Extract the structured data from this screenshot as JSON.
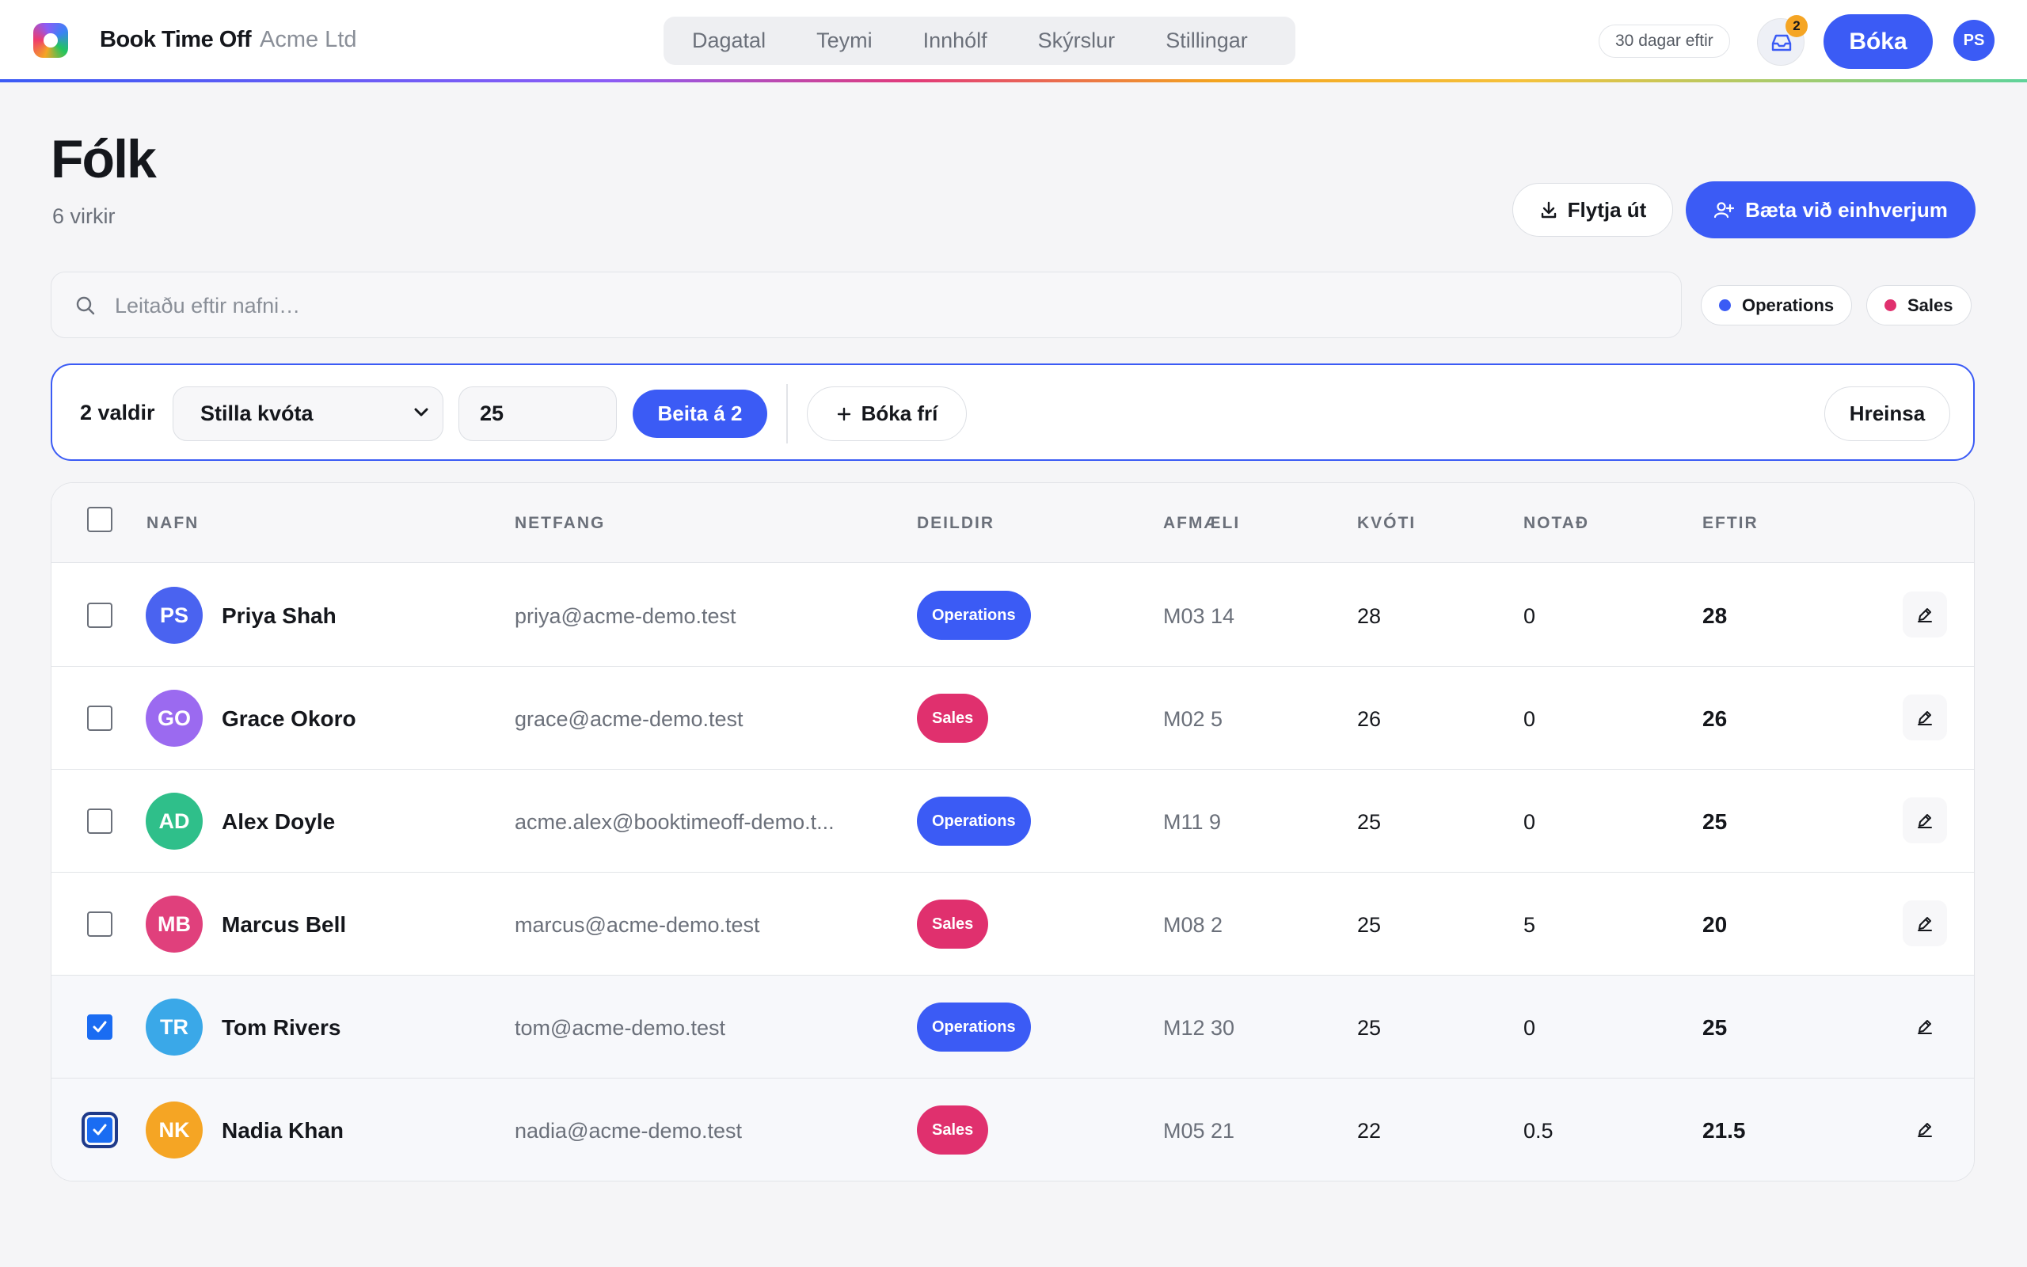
{
  "app": {
    "brand": "Book Time Off",
    "org": "Acme Ltd",
    "nav": [
      "Dagatal",
      "Teymi",
      "Innhólf",
      "Skýrslur",
      "Stillingar"
    ],
    "days_left": "30 dagar eftir",
    "inbox_count": "2",
    "book_label": "Bóka",
    "user_initials": "PS",
    "icons": [
      "logo",
      "inbox-icon"
    ]
  },
  "header": {
    "title": "Fólk",
    "subtitle": "6 virkir",
    "export_label": "Flytja út",
    "add_label": "Bæta við einhverjum",
    "icons": [
      "download-icon",
      "user-plus-icon"
    ]
  },
  "search": {
    "placeholder": "Leitaðu eftir nafni…",
    "value": "",
    "icon": "search-icon"
  },
  "filters": [
    {
      "label": "Operations",
      "color": "#3b5bf5"
    },
    {
      "label": "Sales",
      "color": "#e0306e"
    }
  ],
  "bulk": {
    "count_label": "2 valdir",
    "action_selected": "Stilla kvóta",
    "value": "25",
    "apply_label": "Beita á 2",
    "book_label": "Bóka frí",
    "clear_label": "Hreinsa"
  },
  "table": {
    "columns": [
      "NAFN",
      "NETFANG",
      "DEILDIR",
      "AFMÆLI",
      "KVÓTI",
      "NOTAÐ",
      "EFTIR"
    ],
    "rows": [
      {
        "initials": "PS",
        "avatar_color": "#4a63f0",
        "name": "Priya Shah",
        "email": "priya@acme-demo.test",
        "dept": "Operations",
        "dept_color": "#3b5bf5",
        "birthday": "M03 14",
        "quota": "28",
        "used": "0",
        "left": "28",
        "checked": false
      },
      {
        "initials": "GO",
        "avatar_color": "#9b6af0",
        "name": "Grace Okoro",
        "email": "grace@acme-demo.test",
        "dept": "Sales",
        "dept_color": "#e0306e",
        "birthday": "M02 5",
        "quota": "26",
        "used": "0",
        "left": "26",
        "checked": false
      },
      {
        "initials": "AD",
        "avatar_color": "#2fbf8a",
        "name": "Alex Doyle",
        "email": "acme.alex@booktimeoff-demo.t...",
        "dept": "Operations",
        "dept_color": "#3b5bf5",
        "birthday": "M11 9",
        "quota": "25",
        "used": "0",
        "left": "25",
        "checked": false
      },
      {
        "initials": "MB",
        "avatar_color": "#e0407c",
        "name": "Marcus Bell",
        "email": "marcus@acme-demo.test",
        "dept": "Sales",
        "dept_color": "#e0306e",
        "birthday": "M08 2",
        "quota": "25",
        "used": "5",
        "left": "20",
        "checked": false
      },
      {
        "initials": "TR",
        "avatar_color": "#3aa8e8",
        "name": "Tom Rivers",
        "email": "tom@acme-demo.test",
        "dept": "Operations",
        "dept_color": "#3b5bf5",
        "birthday": "M12 30",
        "quota": "25",
        "used": "0",
        "left": "25",
        "checked": true
      },
      {
        "initials": "NK",
        "avatar_color": "#f5a524",
        "name": "Nadia Khan",
        "email": "nadia@acme-demo.test",
        "dept": "Sales",
        "dept_color": "#e0306e",
        "birthday": "M05 21",
        "quota": "22",
        "used": "0.5",
        "left": "21.5",
        "checked": true
      }
    ]
  }
}
